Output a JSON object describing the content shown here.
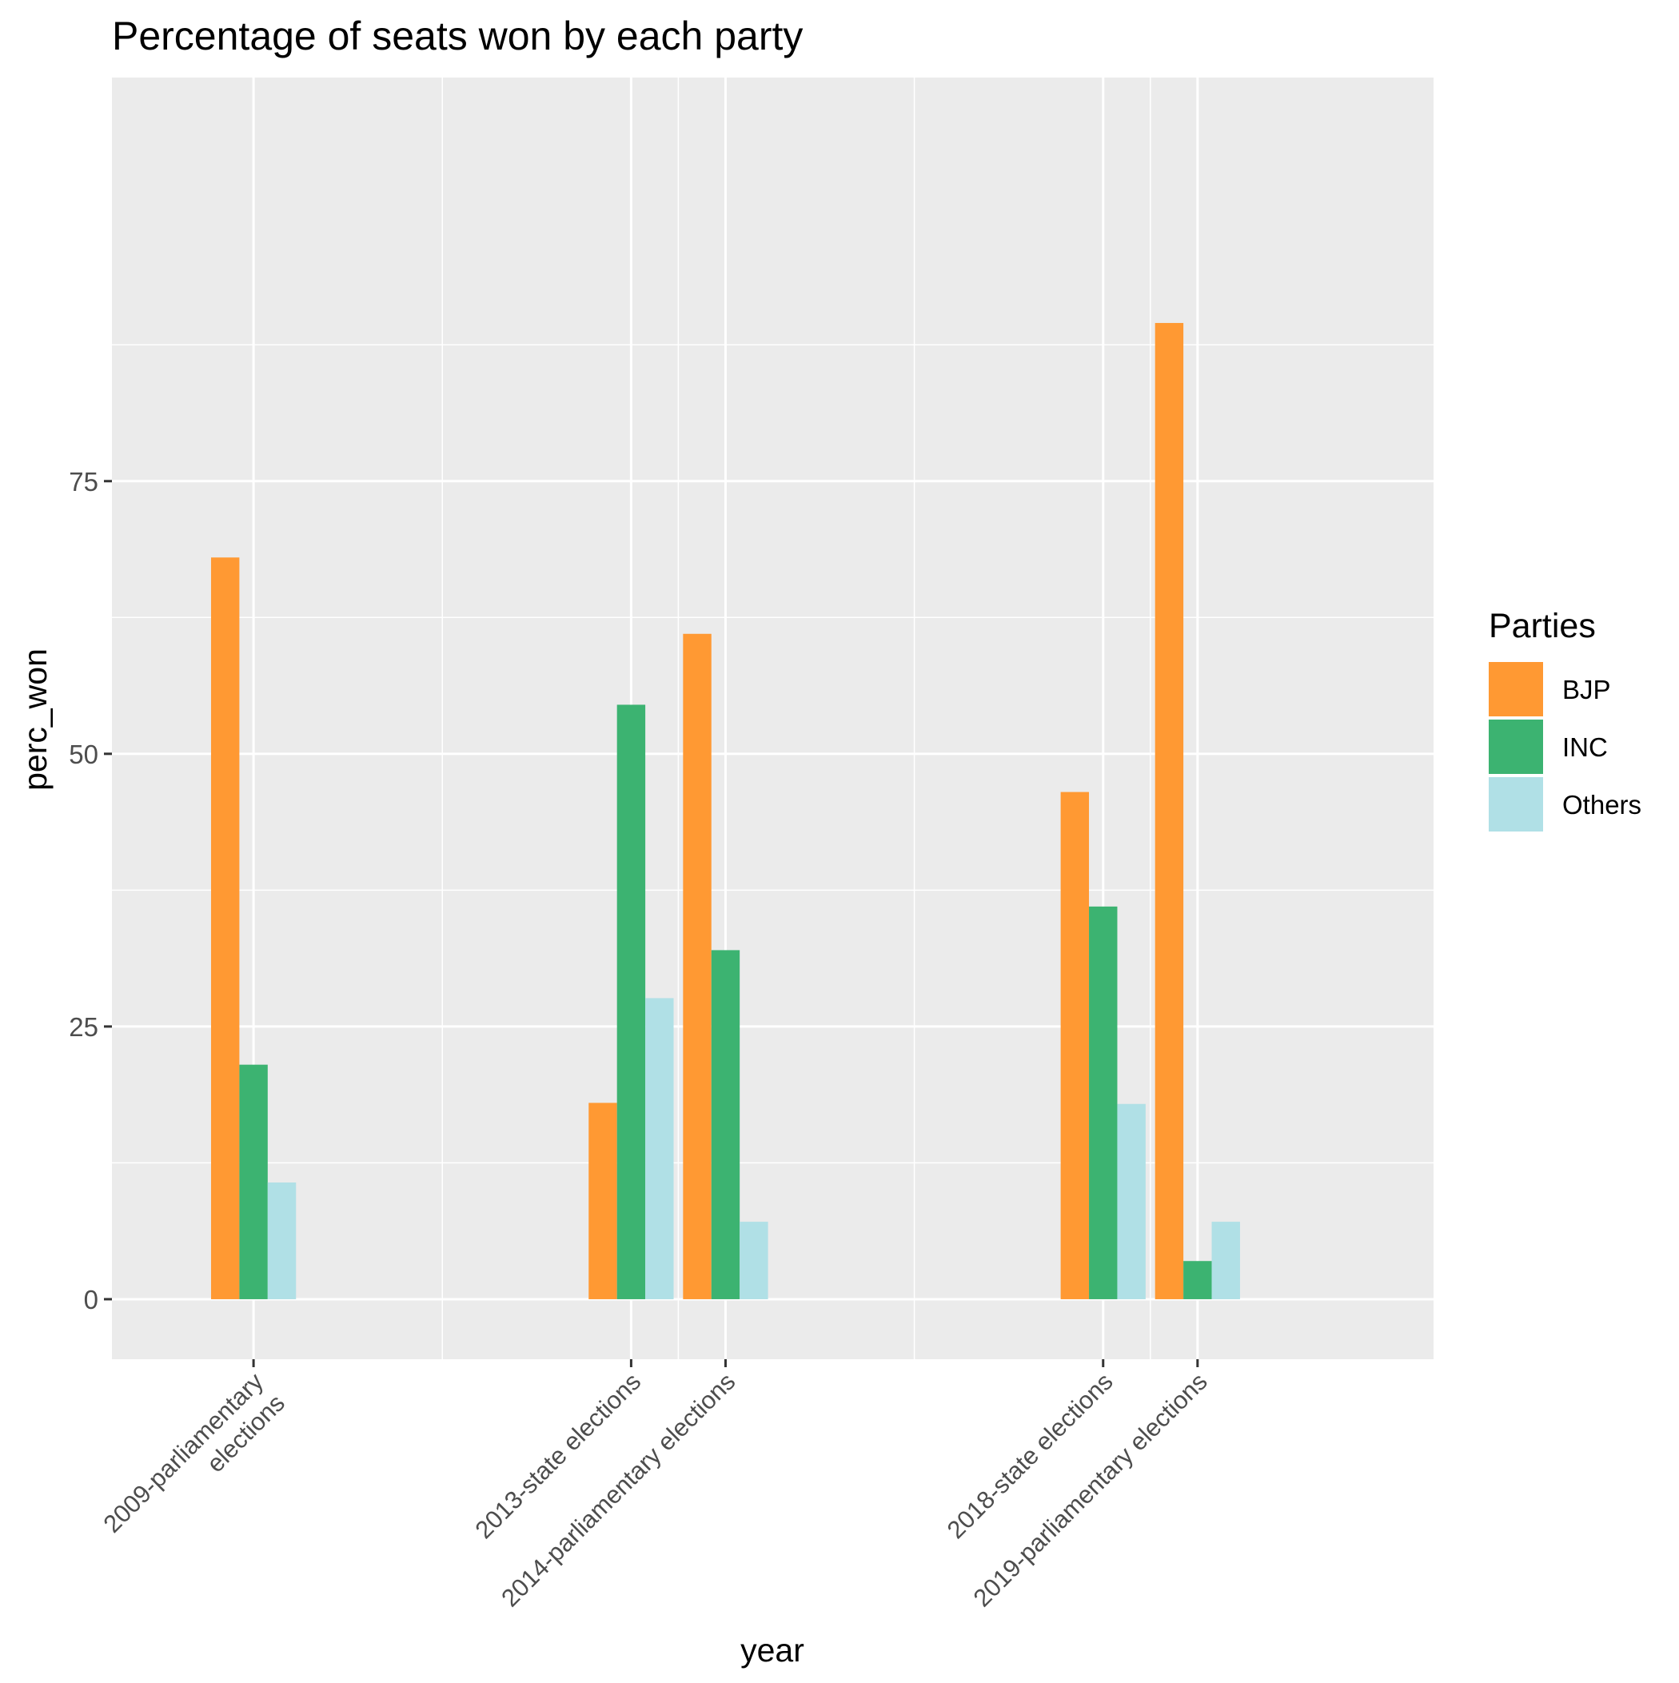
{
  "chart_data": {
    "type": "bar",
    "title": "Percentage of seats won by each party",
    "xlabel": "year",
    "ylabel": "perc_won",
    "x_axis": {
      "type": "continuous-years",
      "range": [
        2007.5,
        2021.5
      ],
      "ticks": [
        {
          "x": 2009,
          "label": [
            "2009-parliamentary",
            "elections"
          ]
        },
        {
          "x": 2013,
          "label": [
            "2013-state elections"
          ]
        },
        {
          "x": 2014,
          "label": [
            "2014-parliamentary elections"
          ]
        },
        {
          "x": 2018,
          "label": [
            "2018-state elections"
          ]
        },
        {
          "x": 2019,
          "label": [
            "2019-parliamentary elections"
          ]
        }
      ],
      "grid_minor": [
        2011,
        2013.5,
        2016,
        2018.5
      ]
    },
    "ylim": [
      -5.5,
      112
    ],
    "y_ticks": [
      0,
      25,
      50,
      75
    ],
    "y_grid_minor": [
      12.5,
      37.5,
      62.5,
      87.5
    ],
    "grid": true,
    "legend": {
      "title": "Parties",
      "position": "right"
    },
    "series": [
      {
        "name": "BJP",
        "color": "#FF9933",
        "values": [
          68,
          18,
          61,
          46.5,
          89.5
        ]
      },
      {
        "name": "INC",
        "color": "#3CB371",
        "values": [
          21.5,
          54.5,
          32,
          36,
          3.5
        ]
      },
      {
        "name": "Others",
        "color": "#B0E0E6",
        "values": [
          10.7,
          27.6,
          7.1,
          17.9,
          7.1
        ]
      }
    ],
    "years": [
      2009,
      2013,
      2014,
      2018,
      2019
    ]
  }
}
